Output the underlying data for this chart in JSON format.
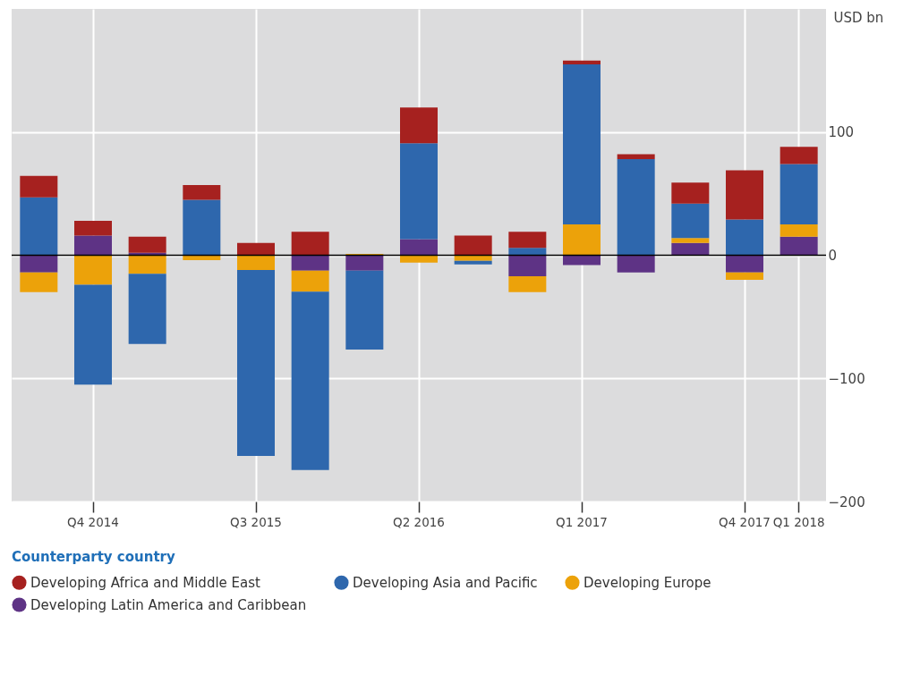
{
  "chart_data": {
    "type": "bar",
    "stacked": true,
    "ylabel": "USD bn",
    "legend_title": "Counterparty country",
    "categories": [
      null,
      "Q4 2014",
      null,
      null,
      "Q3 2015",
      null,
      null,
      "Q2 2016",
      null,
      null,
      "Q1 2017",
      null,
      null,
      "Q4 2017",
      "Q1 2018"
    ],
    "series": [
      {
        "name": "Developing Latin America and Caribbean",
        "color": "#5e3385",
        "values": [
          -14,
          16,
          2,
          null,
          null,
          -12.5,
          -12.5,
          13,
          null,
          -17,
          -8,
          -14,
          10,
          -14,
          15
        ]
      },
      {
        "name": "Developing Europe",
        "color": "#eca20a",
        "values": [
          -16,
          -24,
          -15,
          -4,
          -12,
          -17,
          1,
          -6,
          -4.5,
          -13,
          25,
          null,
          4,
          -6,
          10
        ]
      },
      {
        "name": "Developing Asia and Pacific",
        "color": "#2e67ad",
        "values": [
          47,
          -81,
          -57,
          45,
          -151,
          -145,
          -64,
          78,
          -3,
          6,
          130,
          78,
          28,
          29,
          49
        ]
      },
      {
        "name": "Developing Africa and Middle East",
        "color": "#a6211f",
        "values": [
          17.5,
          12,
          13,
          12,
          10,
          19,
          null,
          29,
          16,
          13,
          3,
          4,
          17,
          40,
          14
        ]
      }
    ],
    "ylim": [
      -200,
      200
    ],
    "yticks": [
      -200,
      -100,
      0,
      100
    ],
    "ref_lines": [
      {
        "axis": "y",
        "value": 0,
        "color": "#000000"
      }
    ],
    "grid": true,
    "legend": "bottom"
  }
}
